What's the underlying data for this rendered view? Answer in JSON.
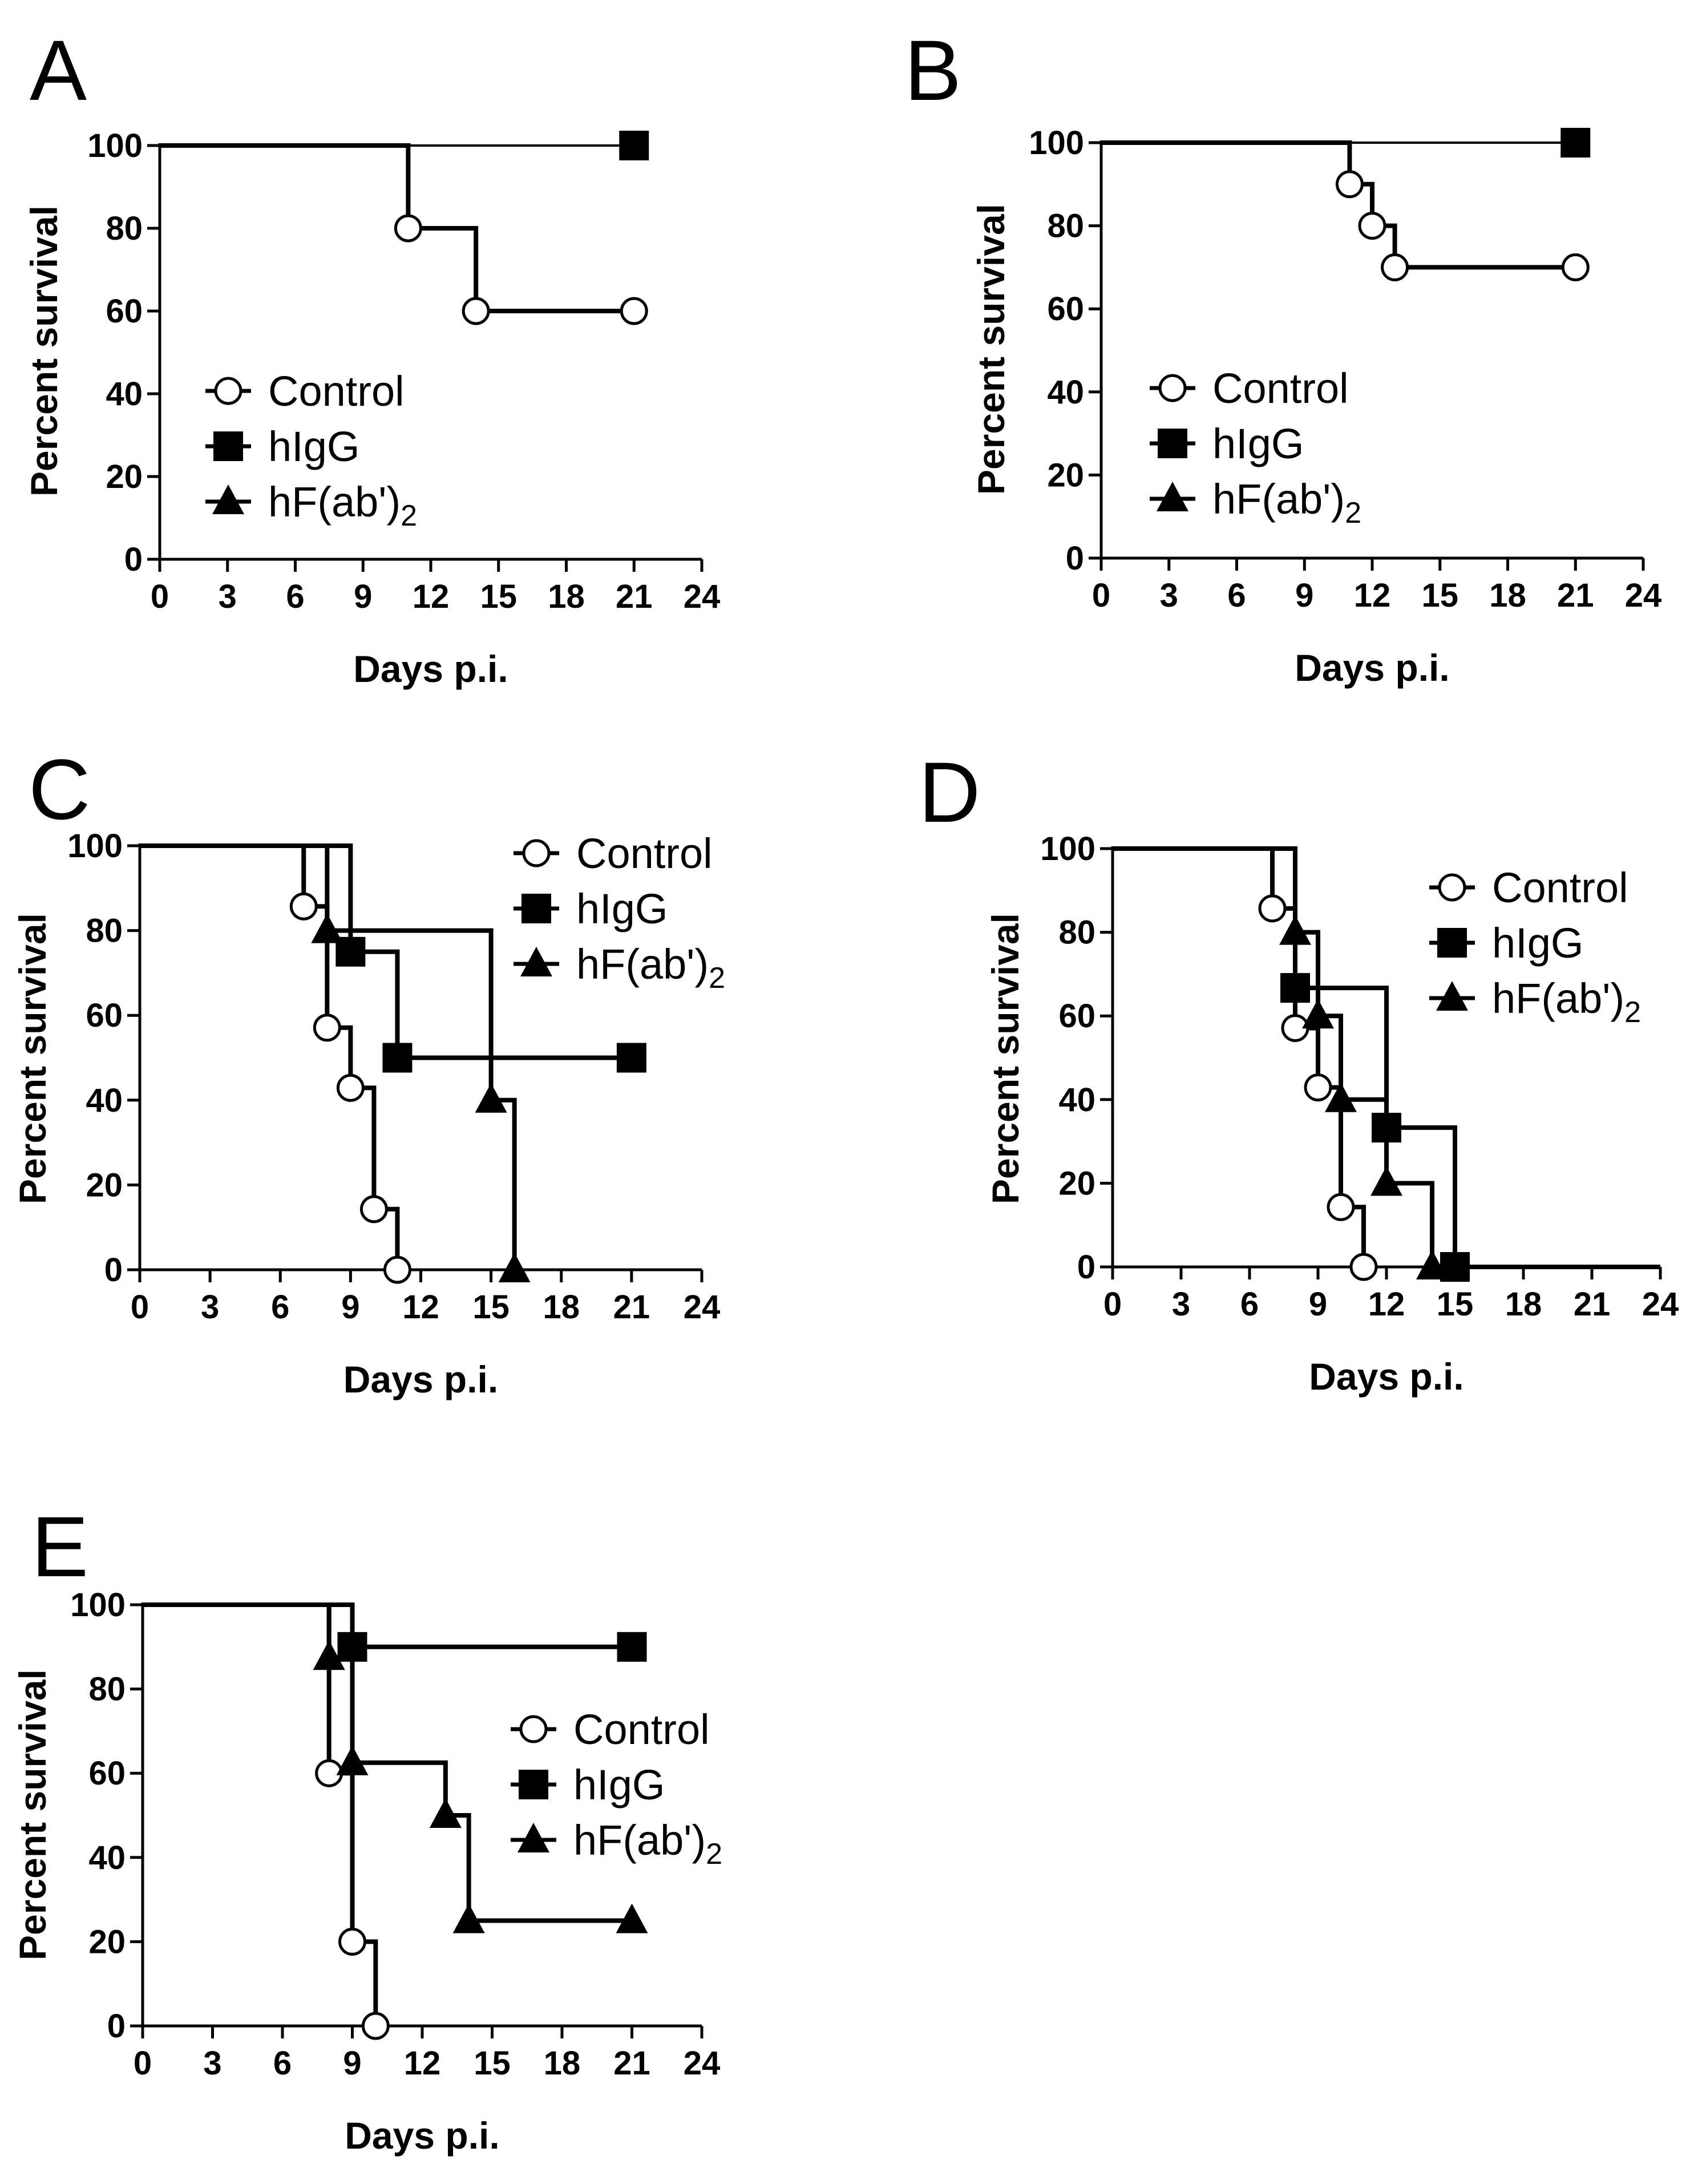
{
  "chart_data": [
    {
      "type": "line",
      "panel": "A",
      "xlabel": "Days p.i.",
      "ylabel": "Percent survival",
      "xlim": [
        0,
        24
      ],
      "ylim": [
        0,
        100
      ],
      "xticks": [
        0,
        3,
        6,
        9,
        12,
        15,
        18,
        21,
        24
      ],
      "yticks": [
        0,
        20,
        40,
        60,
        80,
        100
      ],
      "legend_position": "bottom-left",
      "legend": [
        {
          "name": "Control",
          "sub": "",
          "marker": "circle"
        },
        {
          "name": "hIgG",
          "sub": "",
          "marker": "square"
        },
        {
          "name": "hF(ab')",
          "sub": "2",
          "marker": "triangle"
        }
      ],
      "series": [
        {
          "name": "Control",
          "marker": "circle",
          "steps": [
            [
              0,
              100
            ],
            [
              11,
              80
            ],
            [
              14,
              60
            ],
            [
              21,
              60
            ]
          ],
          "markers": [
            [
              11,
              80
            ],
            [
              14,
              60
            ],
            [
              21,
              60
            ]
          ]
        },
        {
          "name": "hIgG",
          "marker": "square",
          "steps": [
            [
              0,
              100
            ],
            [
              21,
              100
            ]
          ],
          "markers": [
            [
              21,
              100
            ]
          ]
        },
        {
          "name": "hF(ab')2",
          "marker": "triangle",
          "steps": [
            [
              0,
              100
            ],
            [
              21,
              100
            ]
          ],
          "markers": []
        }
      ]
    },
    {
      "type": "line",
      "panel": "B",
      "xlabel": "Days p.i.",
      "ylabel": "Percent survival",
      "xlim": [
        0,
        24
      ],
      "ylim": [
        0,
        100
      ],
      "xticks": [
        0,
        3,
        6,
        9,
        12,
        15,
        18,
        21,
        24
      ],
      "yticks": [
        0,
        20,
        40,
        60,
        80,
        100
      ],
      "legend_position": "bottom-left",
      "legend": [
        {
          "name": "Control",
          "sub": "",
          "marker": "circle"
        },
        {
          "name": "hIgG",
          "sub": "",
          "marker": "square"
        },
        {
          "name": "hF(ab')",
          "sub": "2",
          "marker": "triangle"
        }
      ],
      "series": [
        {
          "name": "Control",
          "marker": "circle",
          "steps": [
            [
              0,
              100
            ],
            [
              11,
              90
            ],
            [
              12,
              80
            ],
            [
              13,
              70
            ],
            [
              21,
              70
            ]
          ],
          "markers": [
            [
              11,
              90
            ],
            [
              12,
              80
            ],
            [
              13,
              70
            ],
            [
              21,
              70
            ]
          ]
        },
        {
          "name": "hIgG",
          "marker": "square",
          "steps": [
            [
              0,
              100
            ],
            [
              21,
              100
            ]
          ],
          "markers": [
            [
              21,
              100
            ]
          ]
        },
        {
          "name": "hF(ab')2",
          "marker": "triangle",
          "steps": [
            [
              0,
              100
            ],
            [
              21,
              100
            ]
          ],
          "markers": []
        }
      ]
    },
    {
      "type": "line",
      "panel": "C",
      "xlabel": "Days p.i.",
      "ylabel": "Percent survival",
      "xlim": [
        0,
        24
      ],
      "ylim": [
        0,
        100
      ],
      "xticks": [
        0,
        3,
        6,
        9,
        12,
        15,
        18,
        21,
        24
      ],
      "yticks": [
        0,
        20,
        40,
        60,
        80,
        100
      ],
      "legend_position": "top-right",
      "legend": [
        {
          "name": "Control",
          "sub": "",
          "marker": "circle"
        },
        {
          "name": "hIgG",
          "sub": "",
          "marker": "square"
        },
        {
          "name": "hF(ab')",
          "sub": "2",
          "marker": "triangle"
        }
      ],
      "series": [
        {
          "name": "Control",
          "marker": "circle",
          "steps": [
            [
              0,
              100
            ],
            [
              7,
              85.7
            ],
            [
              8,
              57.1
            ],
            [
              9,
              42.9
            ],
            [
              10,
              14.3
            ],
            [
              11,
              0
            ]
          ],
          "markers": [
            [
              7,
              85.7
            ],
            [
              8,
              57.1
            ],
            [
              9,
              42.9
            ],
            [
              10,
              14.3
            ],
            [
              11,
              0
            ]
          ]
        },
        {
          "name": "hIgG",
          "marker": "square",
          "steps": [
            [
              0,
              100
            ],
            [
              9,
              75
            ],
            [
              11,
              50
            ],
            [
              21,
              50
            ]
          ],
          "markers": [
            [
              9,
              75
            ],
            [
              11,
              50
            ],
            [
              21,
              50
            ]
          ]
        },
        {
          "name": "hF(ab')2",
          "marker": "triangle",
          "steps": [
            [
              0,
              100
            ],
            [
              8,
              80
            ],
            [
              15,
              40
            ],
            [
              16,
              0
            ]
          ],
          "markers": [
            [
              8,
              80
            ],
            [
              15,
              40
            ],
            [
              16,
              0
            ]
          ]
        }
      ]
    },
    {
      "type": "line",
      "panel": "D",
      "xlabel": "Days p.i.",
      "ylabel": "Percent survival",
      "xlim": [
        0,
        24
      ],
      "ylim": [
        0,
        100
      ],
      "xticks": [
        0,
        3,
        6,
        9,
        12,
        15,
        18,
        21,
        24
      ],
      "yticks": [
        0,
        20,
        40,
        60,
        80,
        100
      ],
      "legend_position": "top-right",
      "legend": [
        {
          "name": "Control",
          "sub": "",
          "marker": "circle"
        },
        {
          "name": "hIgG",
          "sub": "",
          "marker": "square"
        },
        {
          "name": "hF(ab')",
          "sub": "2",
          "marker": "triangle"
        }
      ],
      "series": [
        {
          "name": "Control",
          "marker": "circle",
          "steps": [
            [
              0,
              100
            ],
            [
              7,
              85.7
            ],
            [
              8,
              57.1
            ],
            [
              9,
              42.9
            ],
            [
              10,
              14.3
            ],
            [
              11,
              0
            ]
          ],
          "markers": [
            [
              7,
              85.7
            ],
            [
              8,
              57.1
            ],
            [
              9,
              42.9
            ],
            [
              10,
              14.3
            ],
            [
              11,
              0
            ]
          ]
        },
        {
          "name": "hIgG",
          "marker": "square",
          "steps": [
            [
              0,
              100
            ],
            [
              8,
              66.7
            ],
            [
              12,
              33.3
            ],
            [
              15,
              0
            ],
            [
              24,
              0
            ]
          ],
          "markers": [
            [
              8,
              66.7
            ],
            [
              12,
              33.3
            ],
            [
              15,
              0
            ]
          ]
        },
        {
          "name": "hF(ab')2",
          "marker": "triangle",
          "steps": [
            [
              0,
              100
            ],
            [
              8,
              80
            ],
            [
              9,
              60
            ],
            [
              10,
              40
            ],
            [
              12,
              20
            ],
            [
              14,
              0
            ]
          ],
          "markers": [
            [
              8,
              80
            ],
            [
              9,
              60
            ],
            [
              10,
              40
            ],
            [
              12,
              20
            ],
            [
              14,
              0
            ]
          ]
        }
      ]
    },
    {
      "type": "line",
      "panel": "E",
      "xlabel": "Days p.i.",
      "ylabel": "Percent survival",
      "xlim": [
        0,
        24
      ],
      "ylim": [
        0,
        100
      ],
      "xticks": [
        0,
        3,
        6,
        9,
        12,
        15,
        18,
        21,
        24
      ],
      "yticks": [
        0,
        20,
        40,
        60,
        80,
        100
      ],
      "legend_position": "center-right",
      "legend": [
        {
          "name": "Control",
          "sub": "",
          "marker": "circle"
        },
        {
          "name": "hIgG",
          "sub": "",
          "marker": "square"
        },
        {
          "name": "hF(ab')",
          "sub": "2",
          "marker": "triangle"
        }
      ],
      "series": [
        {
          "name": "Control",
          "marker": "circle",
          "steps": [
            [
              0,
              100
            ],
            [
              8,
              60
            ],
            [
              9,
              20
            ],
            [
              10,
              0
            ]
          ],
          "markers": [
            [
              8,
              60
            ],
            [
              9,
              20
            ],
            [
              10,
              0
            ]
          ]
        },
        {
          "name": "hIgG",
          "marker": "square",
          "steps": [
            [
              0,
              100
            ],
            [
              9,
              90
            ],
            [
              21,
              90
            ]
          ],
          "markers": [
            [
              9,
              90
            ],
            [
              21,
              90
            ]
          ]
        },
        {
          "name": "hF(ab')2",
          "marker": "triangle",
          "steps": [
            [
              0,
              100
            ],
            [
              8,
              87.5
            ],
            [
              9,
              62.5
            ],
            [
              13,
              50
            ],
            [
              14,
              25
            ],
            [
              21,
              25
            ]
          ],
          "markers": [
            [
              8,
              87.5
            ],
            [
              9,
              62.5
            ],
            [
              13,
              50
            ],
            [
              14,
              25
            ],
            [
              21,
              25
            ]
          ]
        }
      ]
    }
  ]
}
